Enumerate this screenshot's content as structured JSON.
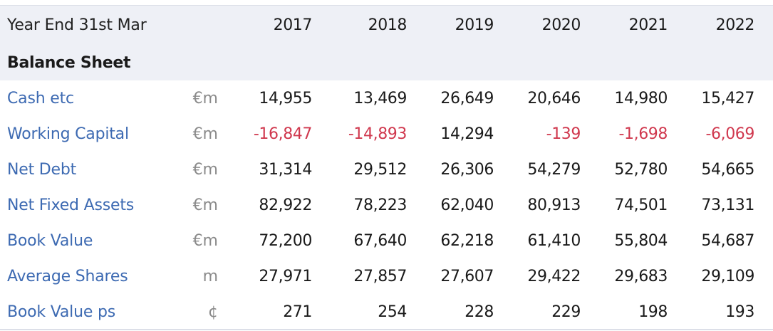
{
  "header": {
    "label": "Year End 31st Mar",
    "years": [
      "2017",
      "2018",
      "2019",
      "2020",
      "2021",
      "2022"
    ]
  },
  "section": {
    "title": "Balance Sheet"
  },
  "rows": [
    {
      "label": "Cash etc",
      "unit": "€m",
      "values": [
        "14,955",
        "13,469",
        "26,649",
        "20,646",
        "14,980",
        "15,427"
      ],
      "negative": [
        false,
        false,
        false,
        false,
        false,
        false
      ]
    },
    {
      "label": "Working Capital",
      "unit": "€m",
      "values": [
        "-16,847",
        "-14,893",
        "14,294",
        "-139",
        "-1,698",
        "-6,069"
      ],
      "negative": [
        true,
        true,
        false,
        true,
        true,
        true
      ]
    },
    {
      "label": "Net Debt",
      "unit": "€m",
      "values": [
        "31,314",
        "29,512",
        "26,306",
        "54,279",
        "52,780",
        "54,665"
      ],
      "negative": [
        false,
        false,
        false,
        false,
        false,
        false
      ]
    },
    {
      "label": "Net Fixed Assets",
      "unit": "€m",
      "values": [
        "82,922",
        "78,223",
        "62,040",
        "80,913",
        "74,501",
        "73,131"
      ],
      "negative": [
        false,
        false,
        false,
        false,
        false,
        false
      ]
    },
    {
      "label": "Book Value",
      "unit": "€m",
      "values": [
        "72,200",
        "67,640",
        "62,218",
        "61,410",
        "55,804",
        "54,687"
      ],
      "negative": [
        false,
        false,
        false,
        false,
        false,
        false
      ]
    },
    {
      "label": "Average Shares",
      "unit": "m",
      "values": [
        "27,971",
        "27,857",
        "27,607",
        "29,422",
        "29,683",
        "29,109"
      ],
      "negative": [
        false,
        false,
        false,
        false,
        false,
        false
      ]
    },
    {
      "label": "Book Value ps",
      "unit": "¢",
      "values": [
        "271",
        "254",
        "228",
        "229",
        "198",
        "193"
      ],
      "negative": [
        false,
        false,
        false,
        false,
        false,
        false
      ]
    }
  ],
  "colors": {
    "link": "#3d6ab2",
    "negative": "#d0384e",
    "header_bg": "#eef0f6",
    "unit": "#8a8a8a"
  }
}
